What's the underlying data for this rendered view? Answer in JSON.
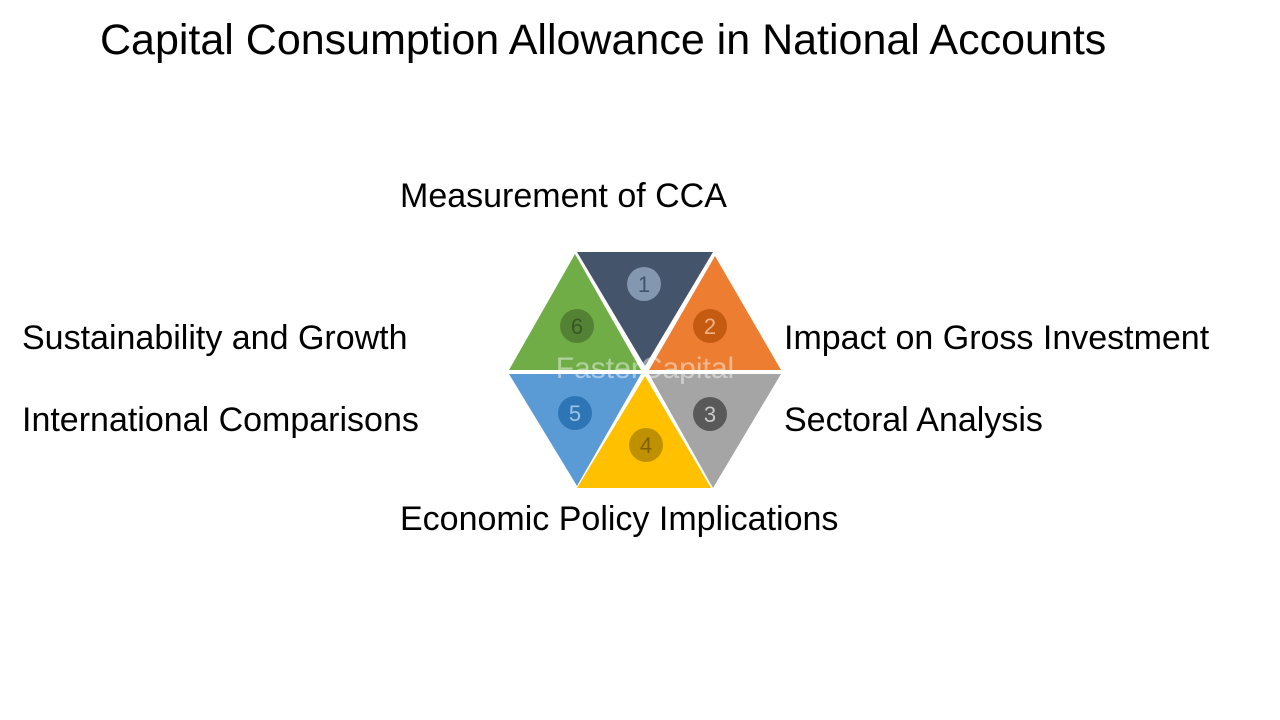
{
  "title": "Capital Consumption Allowance in National Accounts",
  "segments": [
    {
      "number": "1",
      "label": "Measurement of CCA",
      "color": "#44546a",
      "circle": "#8497b0",
      "num_color": "#44546a"
    },
    {
      "number": "2",
      "label": "Impact on Gross Investment",
      "color": "#ed7d31",
      "circle": "#c55a11",
      "num_color": "#f4b183"
    },
    {
      "number": "3",
      "label": "Sectoral Analysis",
      "color": "#a5a5a5",
      "circle": "#595959",
      "num_color": "#c9c9c9"
    },
    {
      "number": "4",
      "label": "Economic Policy Implications",
      "color": "#ffc000",
      "circle": "#bf9000",
      "num_color": "#7f6000"
    },
    {
      "number": "5",
      "label": "International Comparisons",
      "color": "#5b9bd5",
      "circle": "#2e75b6",
      "num_color": "#9dc3e6"
    },
    {
      "number": "6",
      "label": "Sustainability and Growth",
      "color": "#70ad47",
      "circle": "#548235",
      "num_color": "#375623"
    }
  ],
  "watermark": "FasterCapital"
}
